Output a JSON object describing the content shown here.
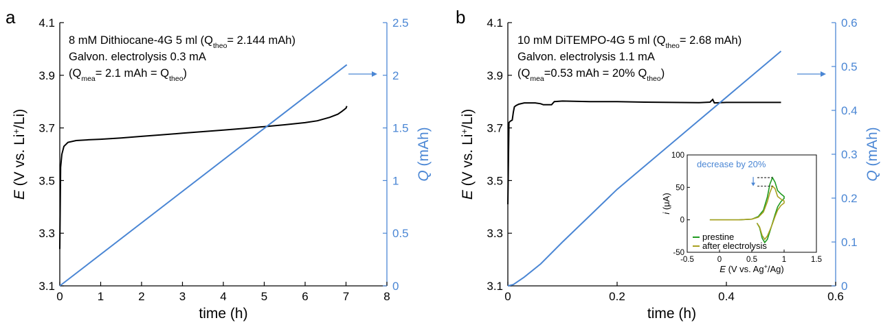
{
  "colors": {
    "axis": "#000000",
    "charge": "#4a86d4",
    "potential": "#000000",
    "prestine": "#1f9a1f",
    "after": "#a8a020"
  },
  "chart_data": [
    {
      "id": "a",
      "type": "line",
      "panel_label": "a",
      "annotation": [
        {
          "text": "8 mM Dithiocane-4G 5 ml (Q",
          "sub": "theo",
          "rest": "= 2.144 mAh)"
        },
        {
          "text": "Galvon. electrolysis 0.3 mA",
          "sub": "",
          "rest": ""
        },
        {
          "text": "(Q",
          "sub": "mea",
          "rest": "= 2.1 mAh = Q",
          "sub2": "theo",
          "rest2": ")"
        }
      ],
      "xlabel": "time (h)",
      "ylabel_left_italic": "E",
      "ylabel_left_rest": " (V vs. Li",
      "ylabel_left_sup": "+",
      "ylabel_left_end": "/Li)",
      "ylabel_right_italic": "Q",
      "ylabel_right_rest": " (mAh)",
      "xlim": [
        0,
        8
      ],
      "ylim_left": [
        3.1,
        4.1
      ],
      "ylim_right": [
        0,
        2.5
      ],
      "xticks": [
        "0",
        "1",
        "2",
        "3",
        "4",
        "5",
        "6",
        "7",
        "8"
      ],
      "yticks_left": [
        "3.1",
        "3.3",
        "3.5",
        "3.7",
        "3.9",
        "4.1"
      ],
      "yticks_right": [
        "0",
        "0.5",
        "1",
        "1.5",
        "2",
        "2.5"
      ],
      "series": [
        {
          "axis": "left",
          "points": [
            [
              0,
              3.24
            ],
            [
              0.02,
              3.55
            ],
            [
              0.05,
              3.6
            ],
            [
              0.1,
              3.63
            ],
            [
              0.2,
              3.645
            ],
            [
              0.4,
              3.652
            ],
            [
              0.7,
              3.655
            ],
            [
              1,
              3.657
            ],
            [
              1.5,
              3.662
            ],
            [
              2,
              3.668
            ],
            [
              2.5,
              3.674
            ],
            [
              3,
              3.68
            ],
            [
              3.5,
              3.686
            ],
            [
              4,
              3.692
            ],
            [
              4.5,
              3.698
            ],
            [
              5,
              3.705
            ],
            [
              5.5,
              3.712
            ],
            [
              6,
              3.72
            ],
            [
              6.3,
              3.727
            ],
            [
              6.6,
              3.74
            ],
            [
              6.8,
              3.752
            ],
            [
              6.9,
              3.763
            ],
            [
              7.0,
              3.775
            ],
            [
              7.02,
              3.783
            ]
          ]
        },
        {
          "axis": "right",
          "points": [
            [
              0,
              0
            ],
            [
              7.02,
              2.1
            ]
          ]
        }
      ]
    },
    {
      "id": "b",
      "type": "line",
      "panel_label": "b",
      "annotation": [
        {
          "text": "10 mM DiTEMPO-4G 5 ml (Q",
          "sub": "theo",
          "rest": "= 2.68 mAh)"
        },
        {
          "text": "Galvon. electrolysis 1.1 mA",
          "sub": "",
          "rest": ""
        },
        {
          "text": "(Q",
          "sub": "mea",
          "rest": "=0.53 mAh = 20% Q",
          "sub2": "theo",
          "rest2": ")"
        }
      ],
      "xlabel": "time (h)",
      "ylabel_left_italic": "E",
      "ylabel_left_rest": " (V vs. Li",
      "ylabel_left_sup": "+",
      "ylabel_left_end": "/Li)",
      "ylabel_right_italic": "Q",
      "ylabel_right_rest": " (mAh)",
      "xlim": [
        0,
        0.6
      ],
      "ylim_left": [
        3.1,
        4.1
      ],
      "ylim_right": [
        0,
        0.6
      ],
      "xticks": [
        "0",
        "0.2",
        "0.4",
        "0.6"
      ],
      "yticks_left": [
        "3.1",
        "3.3",
        "3.5",
        "3.7",
        "3.9",
        "4.1"
      ],
      "yticks_right": [
        "0",
        "0.1",
        "0.2",
        "0.3",
        "0.4",
        "0.5",
        "0.6"
      ],
      "series": [
        {
          "axis": "left",
          "points": [
            [
              0,
              3.41
            ],
            [
              0.002,
              3.72
            ],
            [
              0.004,
              3.725
            ],
            [
              0.008,
              3.73
            ],
            [
              0.01,
              3.76
            ],
            [
              0.012,
              3.78
            ],
            [
              0.015,
              3.785
            ],
            [
              0.02,
              3.79
            ],
            [
              0.03,
              3.795
            ],
            [
              0.05,
              3.795
            ],
            [
              0.06,
              3.792
            ],
            [
              0.065,
              3.788
            ],
            [
              0.08,
              3.788
            ],
            [
              0.085,
              3.8
            ],
            [
              0.1,
              3.802
            ],
            [
              0.15,
              3.8
            ],
            [
              0.2,
              3.8
            ],
            [
              0.25,
              3.798
            ],
            [
              0.3,
              3.797
            ],
            [
              0.35,
              3.796
            ],
            [
              0.37,
              3.798
            ],
            [
              0.375,
              3.808
            ],
            [
              0.378,
              3.795
            ],
            [
              0.4,
              3.797
            ],
            [
              0.45,
              3.797
            ],
            [
              0.5,
              3.797
            ]
          ]
        },
        {
          "axis": "right",
          "points": [
            [
              0,
              0
            ],
            [
              0.01,
              0.003
            ],
            [
              0.03,
              0.02
            ],
            [
              0.06,
              0.05
            ],
            [
              0.1,
              0.1
            ],
            [
              0.15,
              0.16
            ],
            [
              0.2,
              0.22
            ],
            [
              0.3,
              0.325
            ],
            [
              0.4,
              0.43
            ],
            [
              0.5,
              0.535
            ]
          ]
        }
      ],
      "inset": {
        "type": "line",
        "annotation": "decrease by 20%",
        "xlabel_italic": "E",
        "xlabel_rest": " (V vs. Ag",
        "xlabel_sup": "+",
        "xlabel_end": "/Ag)",
        "ylabel_italic": "i",
        "ylabel_rest": " (μA)",
        "xlim": [
          -0.5,
          1.5
        ],
        "ylim": [
          -50,
          100
        ],
        "xticks": [
          "-0.5",
          "0",
          "0.5",
          "1",
          "1.5"
        ],
        "yticks": [
          "-50",
          "0",
          "50",
          "100"
        ],
        "legend": [
          "prestine",
          "after electrolysis"
        ],
        "series": [
          {
            "name": "prestine",
            "points": [
              [
                -0.15,
                0
              ],
              [
                0.3,
                0
              ],
              [
                0.5,
                1
              ],
              [
                0.6,
                5
              ],
              [
                0.68,
                15
              ],
              [
                0.74,
                35
              ],
              [
                0.78,
                55
              ],
              [
                0.82,
                65
              ],
              [
                0.86,
                58
              ],
              [
                0.9,
                45
              ],
              [
                0.95,
                40
              ],
              [
                1.0,
                36
              ],
              [
                1.0,
                33
              ],
              [
                0.95,
                28
              ],
              [
                0.9,
                20
              ],
              [
                0.86,
                8
              ],
              [
                0.82,
                -5
              ],
              [
                0.78,
                -18
              ],
              [
                0.74,
                -30
              ],
              [
                0.7,
                -35
              ],
              [
                0.66,
                -28
              ],
              [
                0.62,
                -12
              ],
              [
                0.58,
                -5
              ]
            ]
          },
          {
            "name": "after electrolysis",
            "points": [
              [
                -0.15,
                0
              ],
              [
                0.3,
                0
              ],
              [
                0.5,
                1
              ],
              [
                0.6,
                4
              ],
              [
                0.68,
                12
              ],
              [
                0.74,
                28
              ],
              [
                0.78,
                42
              ],
              [
                0.82,
                52
              ],
              [
                0.86,
                48
              ],
              [
                0.9,
                36
              ],
              [
                0.95,
                32
              ],
              [
                1.0,
                29
              ],
              [
                1.0,
                26
              ],
              [
                0.95,
                22
              ],
              [
                0.9,
                15
              ],
              [
                0.86,
                5
              ],
              [
                0.82,
                -6
              ],
              [
                0.78,
                -16
              ],
              [
                0.74,
                -25
              ],
              [
                0.7,
                -30
              ],
              [
                0.66,
                -24
              ],
              [
                0.62,
                -11
              ],
              [
                0.58,
                -5
              ]
            ]
          }
        ]
      }
    }
  ]
}
